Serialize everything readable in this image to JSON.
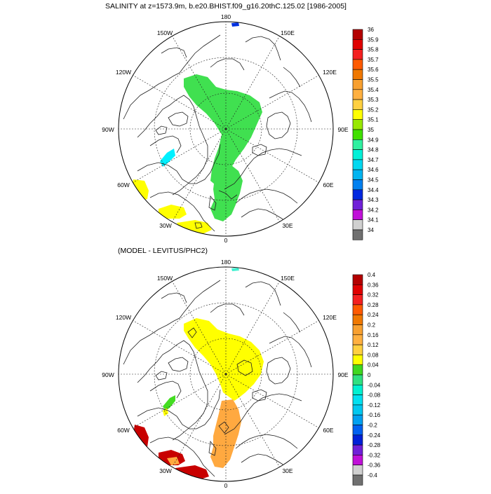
{
  "title_top": "SALINITY at z=1573.9m, b.e20.BHIST.f09_g16.20thC.125.02 [1986-2005]",
  "title_bottom": "(MODEL - LEVITUS/PHC2)",
  "longitude_labels": {
    "n180": "180",
    "w150": "150W",
    "e150": "150E",
    "w120": "120W",
    "e120": "120E",
    "w90": "90W",
    "e90": "90E",
    "w60": "60W",
    "e60": "60E",
    "w30": "30W",
    "e30": "30E",
    "s0": "0"
  },
  "top_colorbar": {
    "labels": [
      "36",
      "35.9",
      "35.8",
      "35.7",
      "35.6",
      "35.5",
      "35.4",
      "35.3",
      "35.2",
      "35.1",
      "35",
      "34.9",
      "34.8",
      "34.7",
      "34.6",
      "34.5",
      "34.4",
      "34.3",
      "34.2",
      "34.1",
      "34"
    ],
    "colors": [
      "#b40000",
      "#e00000",
      "#f42020",
      "#ff5a00",
      "#f07800",
      "#f8a030",
      "#ffb040",
      "#ffd040",
      "#ffff00",
      "#98e800",
      "#40e000",
      "#30f0a0",
      "#00f0d8",
      "#00d8f0",
      "#00b4f0",
      "#0080f0",
      "#0028e0",
      "#7020d8",
      "#c010d8",
      "#d0d0d0",
      "#707070"
    ]
  },
  "bottom_colorbar": {
    "labels": [
      "0.4",
      "0.36",
      "0.32",
      "0.28",
      "0.24",
      "0.2",
      "0.16",
      "0.12",
      "0.08",
      "0.04",
      "0",
      "-0.04",
      "-0.08",
      "-0.12",
      "-0.16",
      "-0.2",
      "-0.24",
      "-0.28",
      "-0.32",
      "-0.36",
      "-0.4"
    ],
    "colors": [
      "#b40000",
      "#e00000",
      "#f42020",
      "#ff5a00",
      "#f07800",
      "#f8a030",
      "#ffb040",
      "#ffd040",
      "#ffff00",
      "#40d820",
      "#30e080",
      "#00f0d0",
      "#00e0f0",
      "#00c8f0",
      "#00a0f0",
      "#0060f0",
      "#0020d8",
      "#7020d8",
      "#c010d8",
      "#d0d0d0",
      "#707070"
    ]
  },
  "fields": {
    "top_main_fill": "#40e050",
    "top_cyan_fill": "#00f0ff",
    "top_yellow_fill": "#ffff00",
    "bottom_yellow_fill": "#ffff00",
    "bottom_orange_fill": "#ffa940",
    "bottom_red_fill": "#c80000",
    "bottom_green_fill": "#44dd22"
  }
}
